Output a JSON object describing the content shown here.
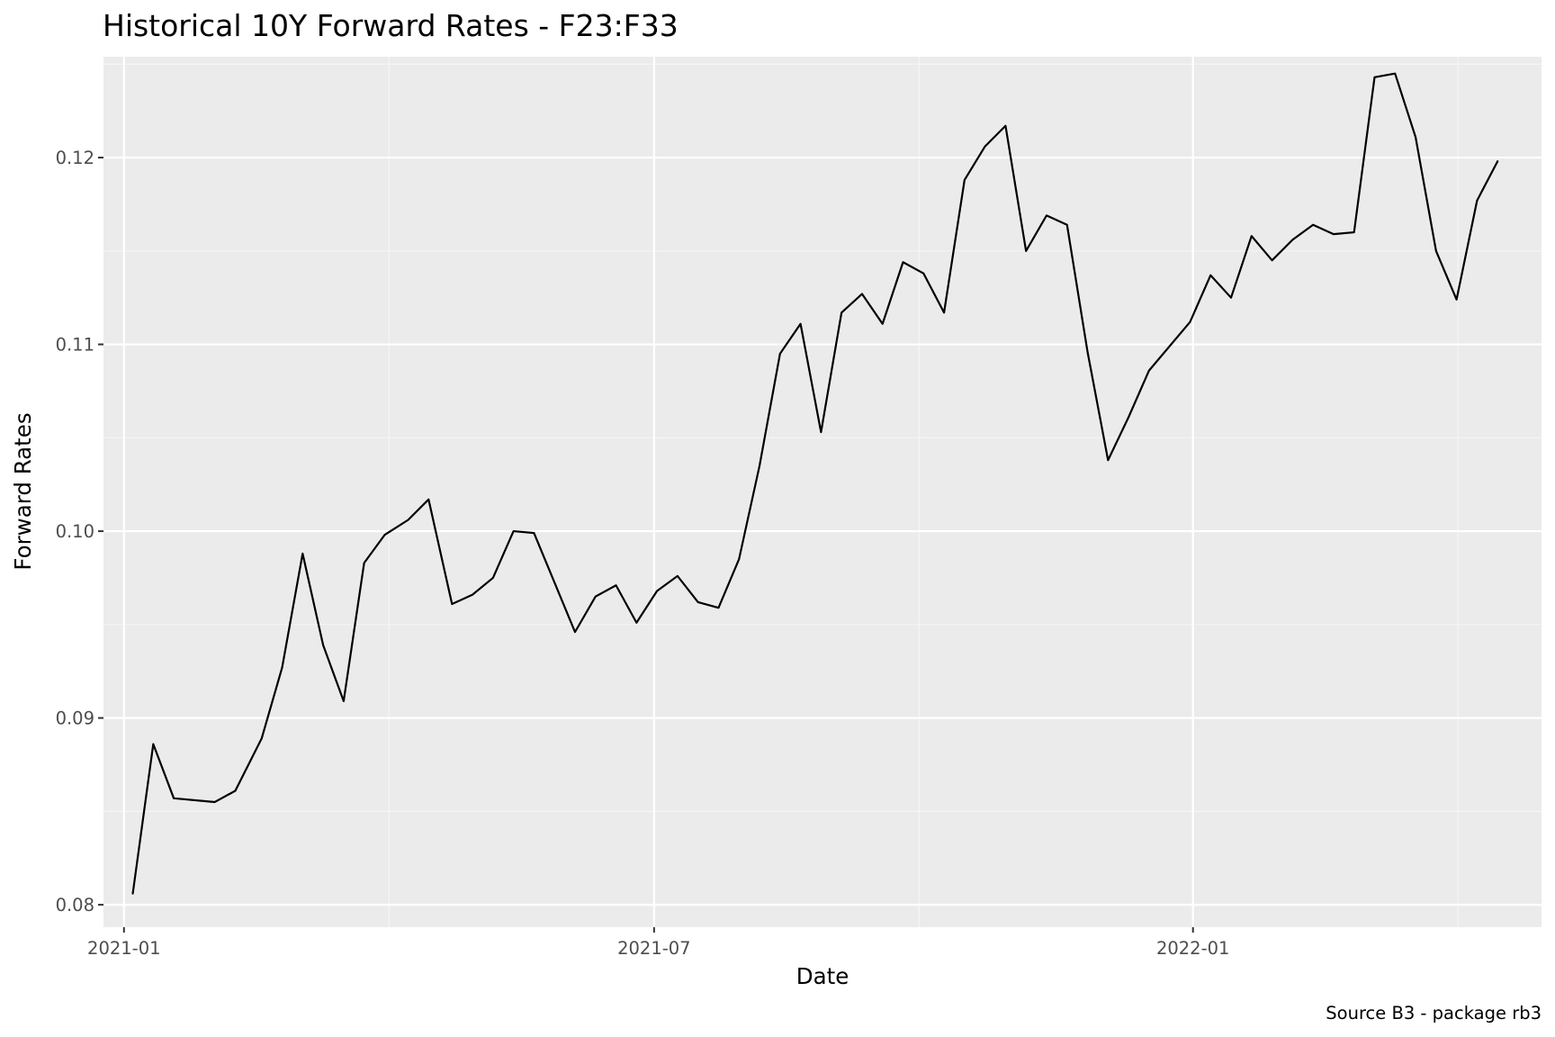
{
  "chart_data": {
    "type": "line",
    "title": "Historical 10Y Forward Rates - F23:F33",
    "xlabel": "Date",
    "ylabel": "Forward Rates",
    "caption": "Source B3 - package rb3",
    "x_tick_labels": [
      "2021-01",
      "2021-07",
      "2022-01"
    ],
    "y_tick_labels": [
      "0.08",
      "0.09",
      "0.10",
      "0.11",
      "0.12"
    ],
    "y_ticks": [
      0.08,
      0.09,
      0.1,
      0.11,
      0.12
    ],
    "xlim": [
      "2020-12-25",
      "2022-04-30"
    ],
    "ylim": [
      0.0788,
      0.1254
    ],
    "grid": true,
    "colors": {
      "panel_background": "#ebebeb",
      "grid_major": "#ffffff",
      "grid_minor": "#f5f5f5",
      "line": "#000000",
      "tick_label": "#4d4d4d",
      "tick_mark": "#333333"
    },
    "series": [
      {
        "x": [
          "2021-01-04",
          "2021-01-11",
          "2021-01-18",
          "2021-02-01",
          "2021-02-08",
          "2021-02-17",
          "2021-02-24",
          "2021-03-03",
          "2021-03-10",
          "2021-03-17",
          "2021-03-24",
          "2021-03-31",
          "2021-04-08",
          "2021-04-15",
          "2021-04-23",
          "2021-04-30",
          "2021-05-07",
          "2021-05-14",
          "2021-05-21",
          "2021-06-04",
          "2021-06-11",
          "2021-06-18",
          "2021-06-25",
          "2021-07-02",
          "2021-07-09",
          "2021-07-16",
          "2021-07-23",
          "2021-07-30",
          "2021-08-06",
          "2021-08-13",
          "2021-08-20",
          "2021-08-27",
          "2021-09-03",
          "2021-09-10",
          "2021-09-17",
          "2021-09-24",
          "2021-10-01",
          "2021-10-08",
          "2021-10-15",
          "2021-10-22",
          "2021-10-29",
          "2021-11-05",
          "2021-11-12",
          "2021-11-19",
          "2021-11-26",
          "2021-12-03",
          "2021-12-10",
          "2021-12-17",
          "2021-12-31",
          "2022-01-07",
          "2022-01-14",
          "2022-01-21",
          "2022-01-28",
          "2022-02-04",
          "2022-02-11",
          "2022-02-18",
          "2022-02-25",
          "2022-03-04",
          "2022-03-11",
          "2022-03-18",
          "2022-03-25",
          "2022-04-01",
          "2022-04-08",
          "2022-04-15"
        ],
        "y": [
          0.0806,
          0.0886,
          0.0857,
          0.0855,
          0.0861,
          0.0889,
          0.0927,
          0.0988,
          0.0939,
          0.0909,
          0.0983,
          0.0998,
          0.1006,
          0.1017,
          0.0961,
          0.0966,
          0.0975,
          0.1,
          0.0999,
          0.0946,
          0.0965,
          0.0971,
          0.0951,
          0.0968,
          0.0976,
          0.0962,
          0.0959,
          0.0985,
          0.1035,
          0.1095,
          0.1111,
          0.1053,
          0.1117,
          0.1127,
          0.1111,
          0.1144,
          0.1138,
          0.1117,
          0.1188,
          0.1206,
          0.1217,
          0.115,
          0.1169,
          0.1164,
          0.1096,
          0.1038,
          0.1061,
          0.1086,
          0.1112,
          0.1137,
          0.1125,
          0.1158,
          0.1145,
          0.1156,
          0.1164,
          0.1159,
          0.116,
          0.1243,
          0.1245,
          0.1211,
          0.115,
          0.1124,
          0.1177,
          0.1198
        ]
      }
    ]
  }
}
